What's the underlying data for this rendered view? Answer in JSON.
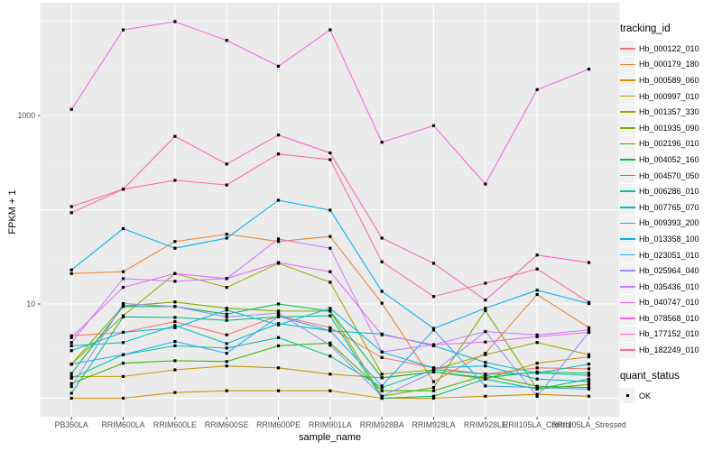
{
  "chart_data": {
    "type": "line",
    "title": "",
    "xlabel": "sample_name",
    "ylabel": "FPKM + 1",
    "y_scale": "log10",
    "y_tick_labels": [
      "1000",
      "10"
    ],
    "y_tick_values": [
      1000,
      10
    ],
    "y_major_gridlines": [
      1,
      10,
      100,
      1000,
      10000
    ],
    "y_minor_gridlines": [
      3.162,
      31.62,
      316.2,
      3162
    ],
    "y_range_log10": [
      -0.2,
      4.196
    ],
    "grid": true,
    "legend_position": "right",
    "marker": {
      "shape": "square",
      "color": "#000000",
      "size": 3.2
    },
    "panel_colors": {
      "background": "#EBEBEB",
      "grid_major": "#FFFFFF",
      "grid_minor": "#F6F6F6",
      "tick": "#333333",
      "tick_label": "#4D4D4D"
    },
    "categories": [
      "PB350LA",
      "RRIM600LA",
      "RRIM600LE",
      "RRIM600SE",
      "RRIM600PE",
      "RRIM901LA",
      "RRIM928BA",
      "RRIM928LA",
      "RRIM928LE",
      "RRII105LA_Control",
      "RRII105LA_Stressed"
    ],
    "series": [
      {
        "name": "Hb_000122_010",
        "color": "#F8766D",
        "values": [
          4.6,
          5.0,
          6.5,
          4.7,
          7.5,
          5.6,
          2.7,
          2.1,
          1.8,
          2.1,
          2.05
        ]
      },
      {
        "name": "Hb_000179_180",
        "color": "#EA8331",
        "values": [
          21,
          22,
          46,
          55,
          46,
          52,
          10.2,
          1.5,
          3.0,
          12.6,
          5.6
        ]
      },
      {
        "name": "Hb_000589_060",
        "color": "#D89000",
        "values": [
          1.0,
          1.0,
          1.15,
          1.2,
          1.2,
          1.2,
          1.0,
          1.0,
          1.05,
          1.1,
          1.05
        ]
      },
      {
        "name": "Hb_000997_010",
        "color": "#C09B00",
        "values": [
          1.7,
          1.7,
          2.0,
          2.2,
          2.1,
          1.8,
          1.65,
          1.9,
          1.6,
          2.35,
          2.75
        ]
      },
      {
        "name": "Hb_001357_330",
        "color": "#A3A500",
        "values": [
          2.3,
          7.5,
          21,
          15,
          27,
          17,
          1.8,
          2.0,
          2.9,
          3.9,
          2.9
        ]
      },
      {
        "name": "Hb_001935_090",
        "color": "#7CAE00",
        "values": [
          2.3,
          9.5,
          10.5,
          9.0,
          8.4,
          8.4,
          1.05,
          1.3,
          8.5,
          1.25,
          1.4
        ]
      },
      {
        "name": "Hb_002196_010",
        "color": "#39B600",
        "values": [
          1.43,
          2.35,
          2.5,
          2.45,
          3.6,
          3.85,
          1.2,
          1.2,
          1.75,
          1.34,
          1.3
        ]
      },
      {
        "name": "Hb_004052_160",
        "color": "#00BB4E",
        "values": [
          1.83,
          9.4,
          9.4,
          7.8,
          10.0,
          8.4,
          1.65,
          1.9,
          1.65,
          1.9,
          1.85
        ]
      },
      {
        "name": "Hb_004570_050",
        "color": "#00BF7D",
        "values": [
          1.13,
          7.3,
          7.2,
          6.7,
          7.3,
          7.5,
          1.0,
          1.05,
          1.6,
          1.25,
          1.6
        ]
      },
      {
        "name": "Hb_006286_010",
        "color": "#00C1A3",
        "values": [
          1.63,
          2.9,
          3.6,
          3.4,
          4.4,
          2.8,
          1.3,
          2.0,
          1.8,
          1.85,
          1.75
        ]
      },
      {
        "name": "Hb_007765_070",
        "color": "#00BFC4",
        "values": [
          3.6,
          3.9,
          5.9,
          3.8,
          6.2,
          5.2,
          4.8,
          3.6,
          2.4,
          1.85,
          2.3
        ]
      },
      {
        "name": "Hb_009393_200",
        "color": "#00BAE0",
        "values": [
          3.2,
          5.0,
          5.6,
          8.6,
          6.0,
          9.0,
          3.1,
          2.1,
          2.2,
          1.6,
          1.5
        ]
      },
      {
        "name": "Hb_013358_100",
        "color": "#00B0F6",
        "values": [
          23,
          63,
          39,
          50,
          126,
          99,
          13.6,
          5.5,
          9.0,
          14,
          10.1
        ]
      },
      {
        "name": "Hb_023051_010",
        "color": "#35A2FF",
        "values": [
          2.3,
          2.9,
          4.0,
          3.0,
          7.4,
          5.2,
          1.35,
          5.3,
          1.35,
          1.3,
          1.25
        ]
      },
      {
        "name": "Hb_025964_040",
        "color": "#9590FF",
        "values": [
          1.33,
          10.1,
          9.4,
          7.3,
          8.0,
          3.65,
          1.05,
          1.9,
          5.1,
          1.05,
          5.0
        ]
      },
      {
        "name": "Hb_035436_010",
        "color": "#C77CFF",
        "values": [
          3.9,
          18.6,
          17.4,
          18.6,
          49,
          39,
          3.1,
          3.7,
          5.1,
          4.7,
          5.3
        ]
      },
      {
        "name": "Hb_040747_010",
        "color": "#E76BF3",
        "values": [
          4.4,
          15,
          21,
          18.6,
          27.5,
          22,
          4.7,
          3.7,
          3.95,
          4.5,
          5.0
        ]
      },
      {
        "name": "Hb_078568_010",
        "color": "#FA62DB",
        "values": [
          1160,
          8100,
          9900,
          6260,
          3330,
          8100,
          520,
          780,
          187,
          1880,
          3100
        ]
      },
      {
        "name": "Hb_177152_010",
        "color": "#FF62BC",
        "values": [
          108,
          165,
          600,
          305,
          620,
          400,
          50,
          27,
          11,
          33,
          27.5
        ]
      },
      {
        "name": "Hb_182249_010",
        "color": "#FF6A98",
        "values": [
          93,
          165,
          205,
          183,
          390,
          340,
          28,
          12,
          16.6,
          23.5,
          10.4
        ]
      }
    ],
    "legend": {
      "color_title": "tracking_id",
      "shape_title": "quant_status",
      "shape_items": [
        {
          "label": "OK",
          "shape": "square",
          "color": "#000000"
        }
      ]
    }
  }
}
